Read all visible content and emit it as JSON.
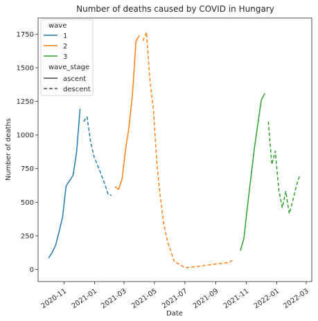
{
  "chart_data": {
    "type": "line",
    "title": "Number of deaths caused by COVID in Hungary",
    "xlabel": "Date",
    "ylabel": "Number of deaths",
    "xlim": [
      "2020-09-10",
      "2022-03-12"
    ],
    "ylim": [
      -90,
      1870
    ],
    "x_ticks": [
      "2020-11-01",
      "2021-01-01",
      "2021-03-01",
      "2021-05-01",
      "2021-07-01",
      "2021-09-01",
      "2021-11-01",
      "2022-01-01",
      "2022-03-01"
    ],
    "x_tick_labels": [
      "2020-11",
      "2021-01",
      "2021-03",
      "2021-05",
      "2021-07",
      "2021-09",
      "2021-11",
      "2022-01",
      "2022-03"
    ],
    "y_ticks": [
      0,
      250,
      500,
      750,
      1000,
      1250,
      1500,
      1750
    ],
    "y_tick_labels": [
      "0",
      "250",
      "500",
      "750",
      "1000",
      "1250",
      "1500",
      "1750"
    ],
    "grid": false,
    "legend": {
      "position": "top-left",
      "wave_title": "wave",
      "stage_title": "wave_stage",
      "waves": [
        "1",
        "2",
        "3"
      ],
      "stages": [
        "ascent",
        "descent"
      ]
    },
    "colors": {
      "1": "#1f77b4",
      "2": "#ff7f0e",
      "3": "#2ca02c",
      "stage": "#444444"
    },
    "series": [
      {
        "wave": "1",
        "stage": "ascent",
        "points": [
          [
            "2020-10-01",
            85
          ],
          [
            "2020-10-08",
            125
          ],
          [
            "2020-10-15",
            180
          ],
          [
            "2020-10-22",
            280
          ],
          [
            "2020-10-29",
            390
          ],
          [
            "2020-11-05",
            620
          ],
          [
            "2020-11-12",
            660
          ],
          [
            "2020-11-19",
            700
          ],
          [
            "2020-11-26",
            870
          ],
          [
            "2020-12-03",
            1195
          ]
        ]
      },
      {
        "wave": "1",
        "stage": "descent",
        "points": [
          [
            "2020-12-10",
            1100
          ],
          [
            "2020-12-17",
            1135
          ],
          [
            "2020-12-24",
            950
          ],
          [
            "2020-12-31",
            840
          ],
          [
            "2021-01-07",
            775
          ],
          [
            "2021-01-14",
            710
          ],
          [
            "2021-01-21",
            640
          ],
          [
            "2021-01-28",
            560
          ],
          [
            "2021-02-04",
            550
          ]
        ]
      },
      {
        "wave": "2",
        "stage": "ascent",
        "points": [
          [
            "2021-02-11",
            615
          ],
          [
            "2021-02-18",
            595
          ],
          [
            "2021-02-25",
            670
          ],
          [
            "2021-03-04",
            890
          ],
          [
            "2021-03-11",
            1060
          ],
          [
            "2021-03-18",
            1300
          ],
          [
            "2021-03-25",
            1700
          ],
          [
            "2021-04-01",
            1740
          ]
        ]
      },
      {
        "wave": "2",
        "stage": "descent",
        "points": [
          [
            "2021-04-08",
            1700
          ],
          [
            "2021-04-15",
            1765
          ],
          [
            "2021-04-22",
            1400
          ],
          [
            "2021-04-29",
            1190
          ],
          [
            "2021-05-06",
            780
          ],
          [
            "2021-05-13",
            530
          ],
          [
            "2021-05-20",
            330
          ],
          [
            "2021-05-27",
            210
          ],
          [
            "2021-06-03",
            130
          ],
          [
            "2021-06-10",
            55
          ],
          [
            "2021-06-17",
            45
          ],
          [
            "2021-06-24",
            30
          ],
          [
            "2021-07-01",
            12
          ],
          [
            "2021-07-31",
            25
          ],
          [
            "2021-08-31",
            40
          ],
          [
            "2021-09-28",
            52
          ],
          [
            "2021-10-06",
            75
          ]
        ]
      },
      {
        "wave": "3",
        "stage": "ascent",
        "points": [
          [
            "2021-10-20",
            140
          ],
          [
            "2021-10-27",
            230
          ],
          [
            "2021-11-03",
            460
          ],
          [
            "2021-11-10",
            680
          ],
          [
            "2021-11-17",
            900
          ],
          [
            "2021-11-24",
            1080
          ],
          [
            "2021-12-01",
            1260
          ],
          [
            "2021-12-08",
            1310
          ]
        ]
      },
      {
        "wave": "3",
        "stage": "descent",
        "points": [
          [
            "2021-12-15",
            1100
          ],
          [
            "2021-12-22",
            780
          ],
          [
            "2021-12-29",
            880
          ],
          [
            "2022-01-05",
            590
          ],
          [
            "2022-01-12",
            460
          ],
          [
            "2022-01-19",
            580
          ],
          [
            "2022-01-26",
            415
          ],
          [
            "2022-02-02",
            510
          ],
          [
            "2022-02-09",
            620
          ],
          [
            "2022-02-16",
            700
          ]
        ]
      }
    ]
  }
}
